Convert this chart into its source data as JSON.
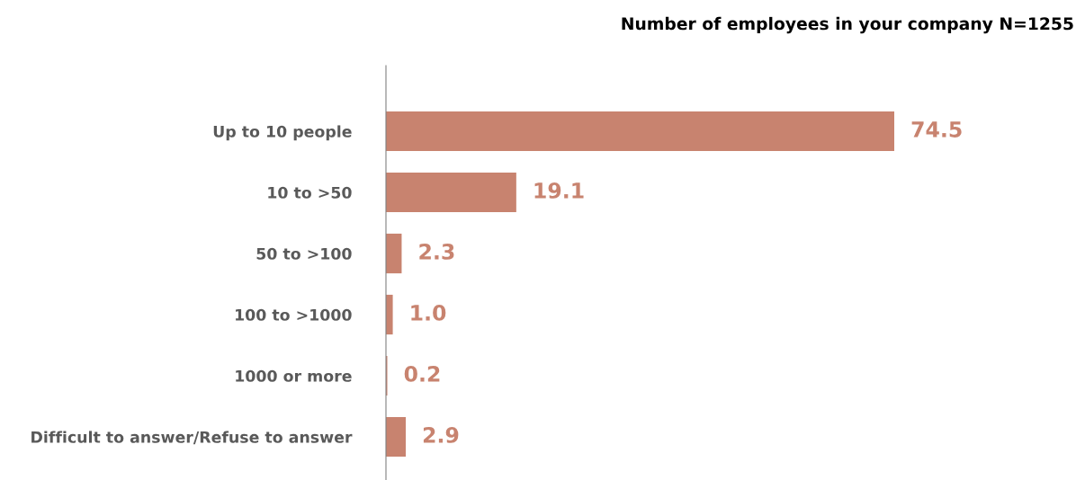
{
  "chart_data": {
    "type": "bar",
    "orientation": "horizontal",
    "title": "Number of employees in your company N=1255",
    "categories": [
      "Up to 10 people",
      "10 to >50",
      "50 to >100",
      "100 to >1000",
      "1000 or more",
      "Difficult to answer/Refuse to answer"
    ],
    "values": [
      74.5,
      19.1,
      2.3,
      1.0,
      0.2,
      2.9
    ],
    "value_labels": [
      "74.5",
      "19.1",
      "2.3",
      "1.0",
      "0.2",
      "2.9"
    ],
    "color": "#c8836f",
    "grid": false,
    "legend": false,
    "tick_labels": "y"
  }
}
